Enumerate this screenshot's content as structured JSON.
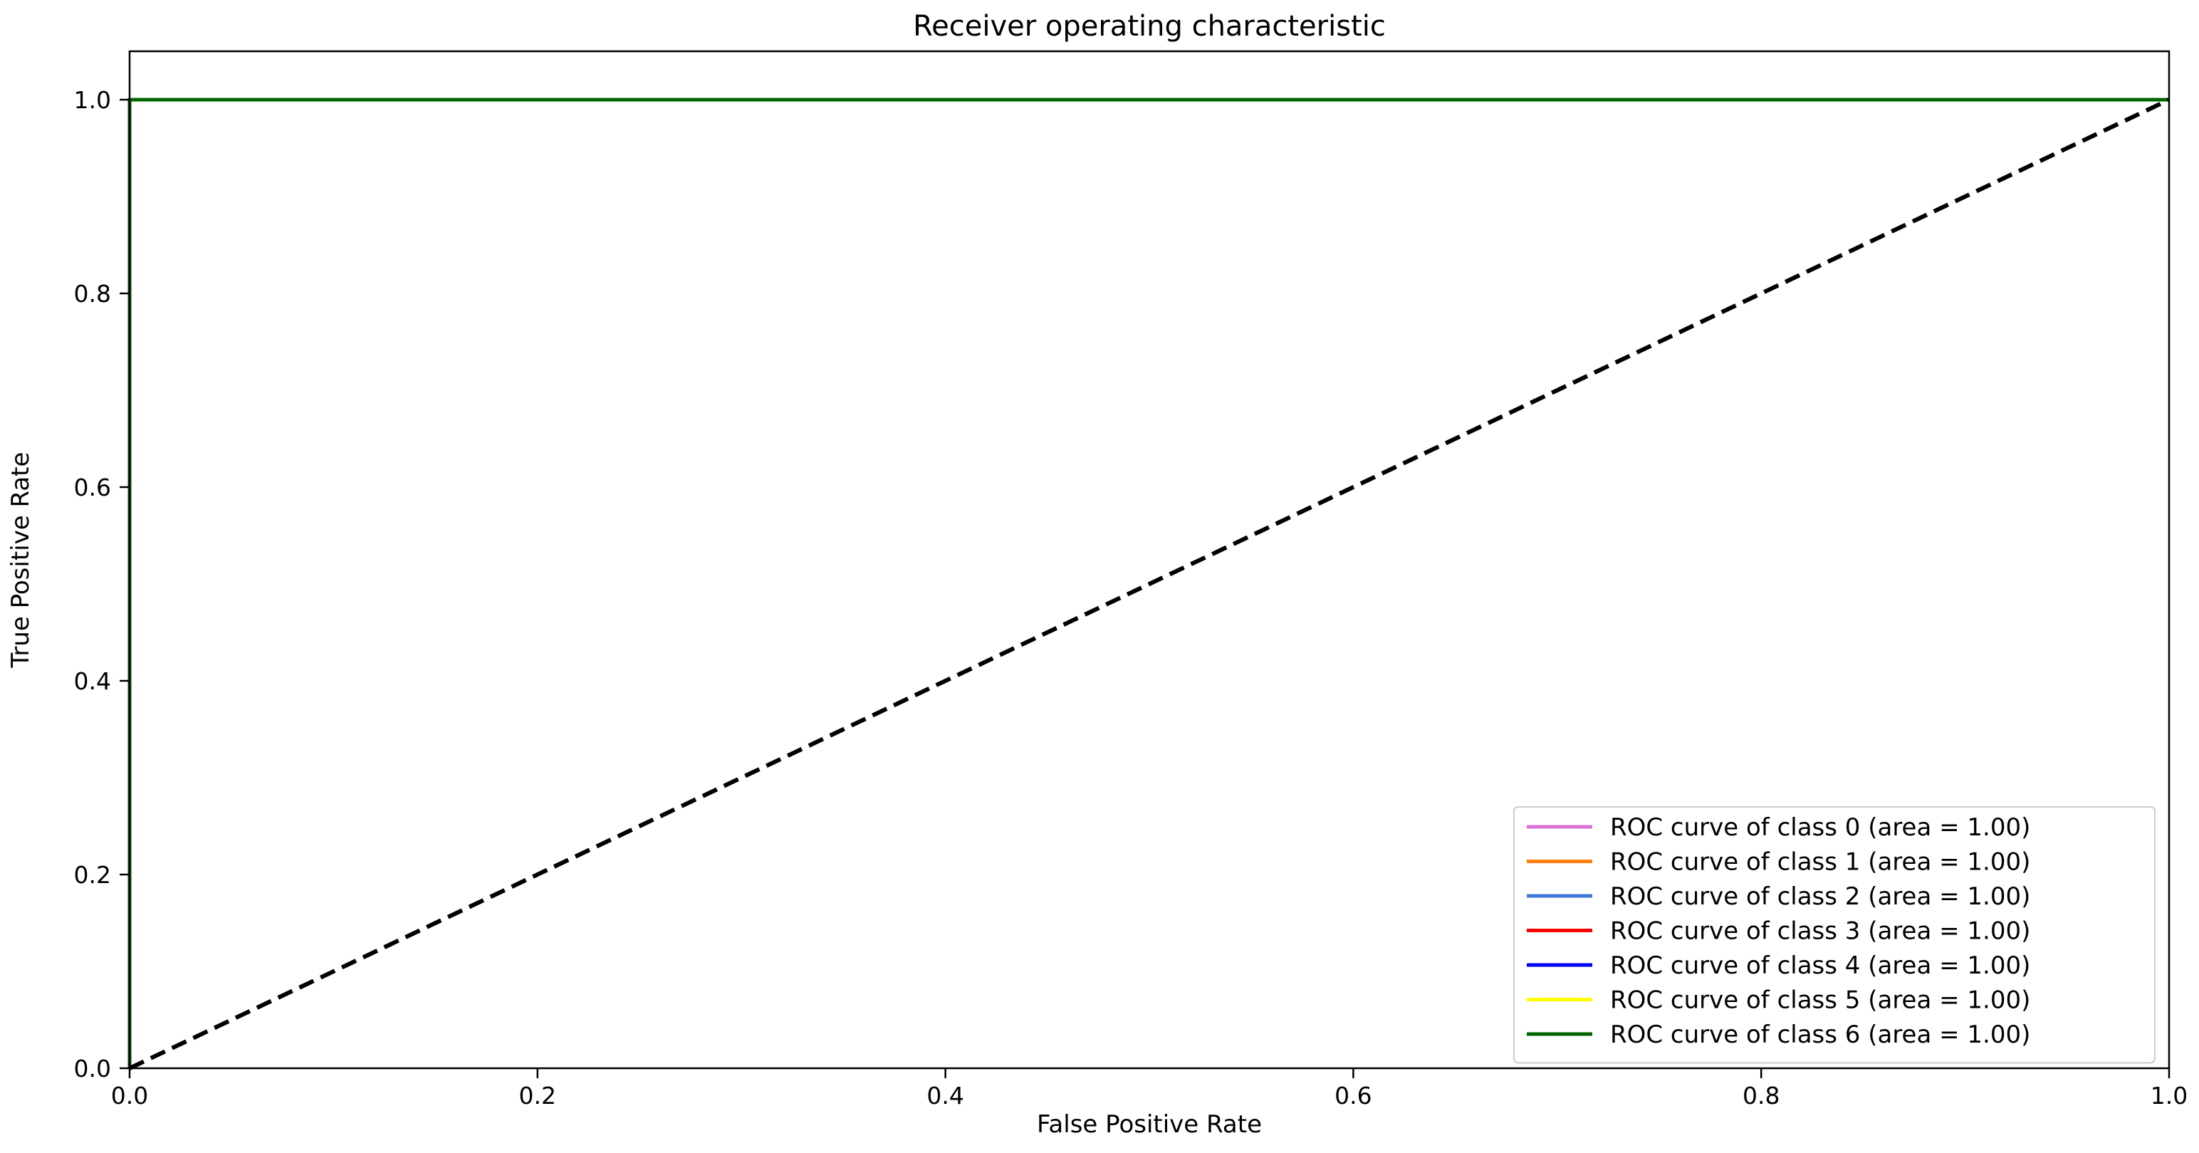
{
  "chart_data": {
    "type": "line",
    "title": "Receiver operating characteristic",
    "xlabel": "False Positive Rate",
    "ylabel": "True Positive Rate",
    "xlim": [
      0.0,
      1.0
    ],
    "ylim": [
      0.0,
      1.05
    ],
    "xticks": [
      0.0,
      0.2,
      0.4,
      0.6,
      0.8,
      1.0
    ],
    "xtick_labels": [
      "0.0",
      "0.2",
      "0.4",
      "0.6",
      "0.8",
      "1.0"
    ],
    "yticks": [
      0.0,
      0.2,
      0.4,
      0.6,
      0.8,
      1.0
    ],
    "ytick_labels": [
      "0.0",
      "0.2",
      "0.4",
      "0.6",
      "0.8",
      "1.0"
    ],
    "grid": false,
    "legend_position": "lower-right",
    "series": [
      {
        "name": "ROC curve of class 0 (area = 1.00)",
        "color": "#da70d6",
        "x": [
          0.0,
          0.0,
          1.0
        ],
        "y": [
          0.0,
          1.0,
          1.0
        ]
      },
      {
        "name": "ROC curve of class 1 (area = 1.00)",
        "color": "#ff7f0e",
        "x": [
          0.0,
          0.0,
          1.0
        ],
        "y": [
          0.0,
          1.0,
          1.0
        ]
      },
      {
        "name": "ROC curve of class 2 (area = 1.00)",
        "color": "#3c78d8",
        "x": [
          0.0,
          0.0,
          1.0
        ],
        "y": [
          0.0,
          1.0,
          1.0
        ]
      },
      {
        "name": "ROC curve of class 3 (area = 1.00)",
        "color": "#ff0000",
        "x": [
          0.0,
          0.0,
          1.0
        ],
        "y": [
          0.0,
          1.0,
          1.0
        ]
      },
      {
        "name": "ROC curve of class 4 (area = 1.00)",
        "color": "#0000ff",
        "x": [
          0.0,
          0.0,
          1.0
        ],
        "y": [
          0.0,
          1.0,
          1.0
        ]
      },
      {
        "name": "ROC curve of class 5 (area = 1.00)",
        "color": "#ffff00",
        "x": [
          0.0,
          0.0,
          1.0
        ],
        "y": [
          0.0,
          1.0,
          1.0
        ]
      },
      {
        "name": "ROC curve of class 6 (area = 1.00)",
        "color": "#006400",
        "x": [
          0.0,
          0.0,
          1.0
        ],
        "y": [
          0.0,
          1.0,
          1.0
        ]
      }
    ],
    "reference_line": {
      "color": "#000000",
      "style": "dashed",
      "x": [
        0.0,
        1.0
      ],
      "y": [
        0.0,
        1.0
      ]
    }
  }
}
